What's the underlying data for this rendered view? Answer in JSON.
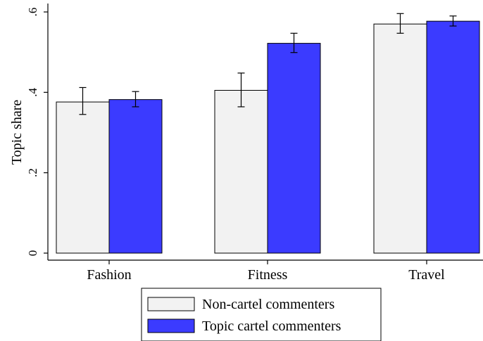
{
  "chart_data": {
    "type": "bar",
    "categories": [
      "Fashion",
      "Fitness",
      "Travel"
    ],
    "series": [
      {
        "name": "Non-cartel commenters",
        "color": "#f2f2f2",
        "values": [
          0.376,
          0.405,
          0.57
        ],
        "ci_low": [
          0.345,
          0.364,
          0.547
        ],
        "ci_high": [
          0.412,
          0.448,
          0.596
        ]
      },
      {
        "name": "Topic cartel commenters",
        "color": "#3b3bff",
        "values": [
          0.382,
          0.522,
          0.577
        ],
        "ci_low": [
          0.364,
          0.499,
          0.565
        ],
        "ci_high": [
          0.402,
          0.547,
          0.59
        ]
      }
    ],
    "yticks": [
      {
        "value": 0,
        "label": "0"
      },
      {
        "value": 0.2,
        "label": ".2"
      },
      {
        "value": 0.4,
        "label": ".4"
      },
      {
        "value": 0.6,
        "label": ".6"
      }
    ],
    "ylabel": "Topic share",
    "xlabel": "",
    "ylim": [
      0,
      0.6
    ],
    "grid": false,
    "error_bars": true,
    "legend_position": "bottom"
  }
}
